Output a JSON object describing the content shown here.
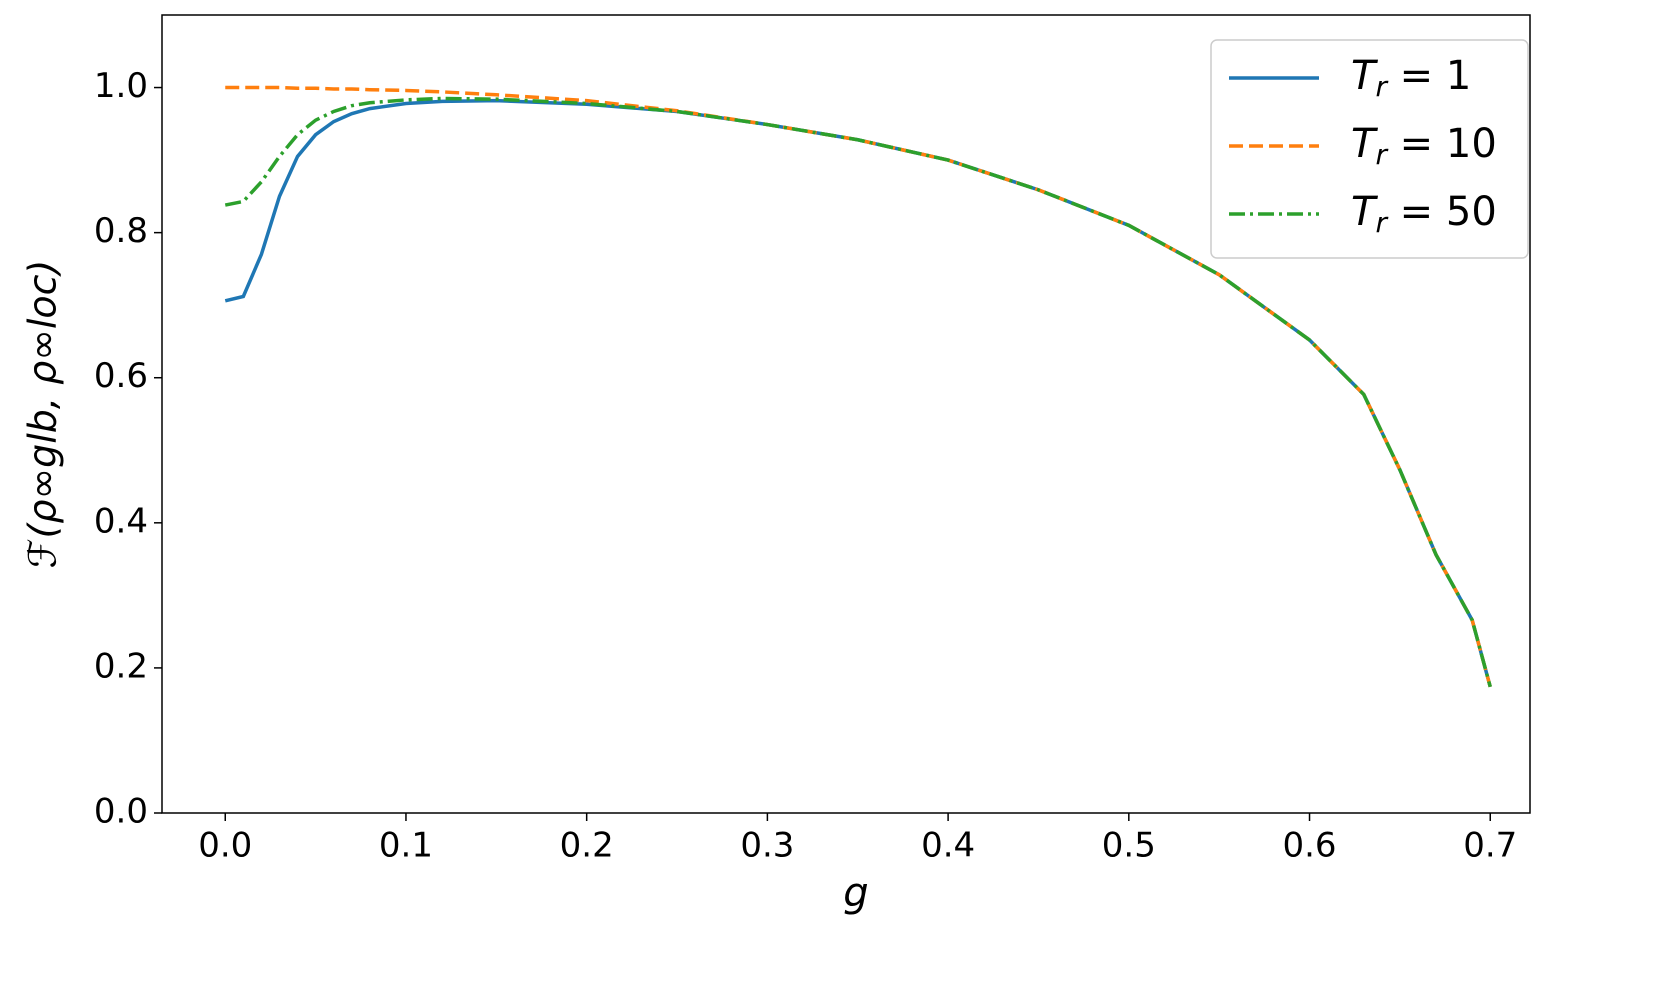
{
  "chart_data": {
    "type": "line",
    "xlabel": "g",
    "ylabel": "ℱ(ρ∞glb, ρ∞loc)",
    "x": [
      0,
      0.01,
      0.02,
      0.03,
      0.04,
      0.05,
      0.06,
      0.07,
      0.08,
      0.1,
      0.12,
      0.15,
      0.2,
      0.25,
      0.3,
      0.35,
      0.4,
      0.45,
      0.5,
      0.55,
      0.6,
      0.63,
      0.65,
      0.67,
      0.69,
      0.7
    ],
    "series": [
      {
        "name": "Tr = 1",
        "color": "#1f77b4",
        "linestyle": "solid",
        "values": [
          0.706,
          0.712,
          0.77,
          0.85,
          0.905,
          0.935,
          0.953,
          0.964,
          0.971,
          0.978,
          0.981,
          0.982,
          0.977,
          0.967,
          0.949,
          0.928,
          0.9,
          0.859,
          0.81,
          0.742,
          0.652,
          0.577,
          0.473,
          0.356,
          0.266,
          0.174
        ]
      },
      {
        "name": "Tr = 10",
        "color": "#ff7f0e",
        "linestyle": "dashed",
        "values": [
          1.0,
          1.0,
          1.0,
          1.0,
          0.999,
          0.999,
          0.998,
          0.998,
          0.997,
          0.996,
          0.994,
          0.99,
          0.982,
          0.968,
          0.949,
          0.928,
          0.9,
          0.859,
          0.81,
          0.742,
          0.652,
          0.577,
          0.473,
          0.356,
          0.266,
          0.174
        ]
      },
      {
        "name": "Tr = 50",
        "color": "#2ca02c",
        "linestyle": "dashdot",
        "values": [
          0.838,
          0.843,
          0.87,
          0.905,
          0.935,
          0.955,
          0.967,
          0.975,
          0.979,
          0.983,
          0.985,
          0.984,
          0.978,
          0.967,
          0.949,
          0.928,
          0.9,
          0.859,
          0.81,
          0.742,
          0.652,
          0.577,
          0.473,
          0.356,
          0.266,
          0.174
        ]
      }
    ],
    "xlim": [
      -0.035,
      0.722
    ],
    "ylim": [
      0,
      1.1
    ],
    "xticks": [
      {
        "value": 0,
        "label": "0.0"
      },
      0.1,
      0.2,
      0.3,
      0.4,
      0.5,
      0.6,
      0.7
    ],
    "yticks": [
      {
        "value": 0,
        "label": "0.0"
      },
      0.2,
      0.4,
      0.6,
      0.8,
      {
        "value": 1,
        "label": "1.0"
      }
    ],
    "legend": "upper right",
    "grid": false
  }
}
